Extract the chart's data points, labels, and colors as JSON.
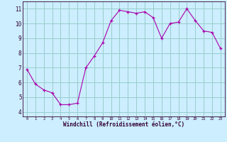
{
  "x": [
    0,
    1,
    2,
    3,
    4,
    5,
    6,
    7,
    8,
    9,
    10,
    11,
    12,
    13,
    14,
    15,
    16,
    17,
    18,
    19,
    20,
    21,
    22,
    23
  ],
  "y": [
    6.9,
    5.9,
    5.5,
    5.3,
    4.5,
    4.5,
    4.6,
    7.0,
    7.8,
    8.7,
    10.2,
    10.9,
    10.8,
    10.7,
    10.8,
    10.4,
    9.0,
    10.0,
    10.1,
    11.0,
    10.2,
    9.5,
    9.4,
    8.3
  ],
  "xlabel": "Windchill (Refroidissement éolien,°C)",
  "bg_color": "#cceeff",
  "line_color": "#aa00aa",
  "marker_color": "#aa00aa",
  "grid_color": "#99cccc",
  "axis_color": "#330033",
  "tick_label_color": "#330033",
  "xlabel_color": "#330033",
  "ylim": [
    3.7,
    11.5
  ],
  "xlim": [
    -0.5,
    23.5
  ],
  "yticks": [
    4,
    5,
    6,
    7,
    8,
    9,
    10,
    11
  ],
  "xticks": [
    0,
    1,
    2,
    3,
    4,
    5,
    6,
    7,
    8,
    9,
    10,
    11,
    12,
    13,
    14,
    15,
    16,
    17,
    18,
    19,
    20,
    21,
    22,
    23
  ]
}
